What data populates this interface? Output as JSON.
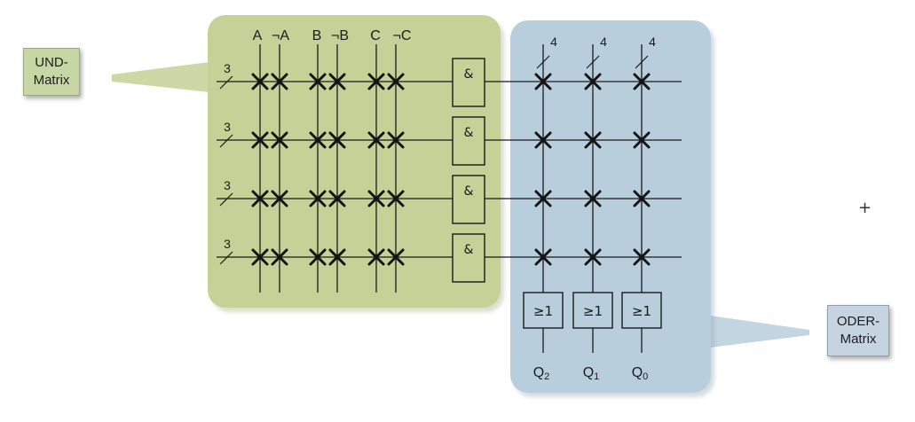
{
  "colors": {
    "und_region": "#c5d197",
    "oder_region": "#b9cedc",
    "und_callout": "#c7d7a4",
    "oder_callout": "#c5d4e0",
    "line": "#1a1a1a",
    "cross": "#141414"
  },
  "callouts": {
    "und_label": "UND-\nMatrix",
    "oder_label": "ODER-\nMatrix"
  },
  "input_labels": [
    "A",
    "¬A",
    "B",
    "¬B",
    "C",
    "¬C"
  ],
  "row_bus_width": "3",
  "column_bus_width": "4",
  "and_gate_symbol": "&",
  "or_gate_symbol": "≥1",
  "outputs": [
    {
      "base": "Q",
      "sub": "2"
    },
    {
      "base": "Q",
      "sub": "1"
    },
    {
      "base": "Q",
      "sub": "0"
    }
  ],
  "cursor_glyph": "+",
  "structure": {
    "and_rows": 4,
    "and_columns": 6,
    "or_columns": 3,
    "and_matrix_fully_connected": true,
    "or_matrix_fully_connected": true
  }
}
